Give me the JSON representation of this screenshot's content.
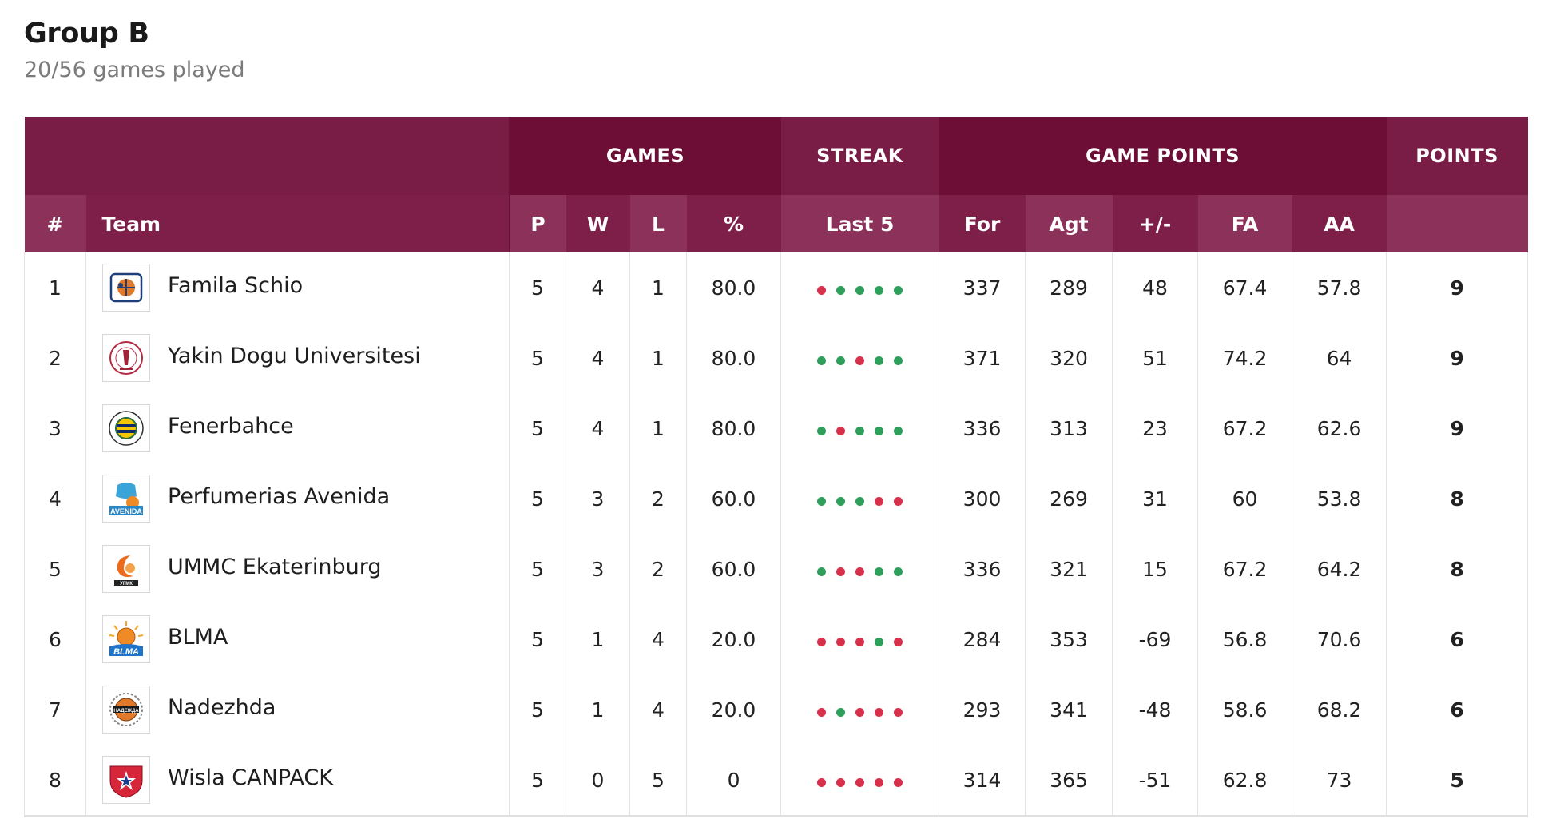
{
  "header": {
    "title": "Group B",
    "subtitle": "20/56 games played"
  },
  "colors": {
    "header_bg": "#7a1d46",
    "header_dark": "#6d0e37",
    "win": "#2e9e5b",
    "loss": "#d6304a"
  },
  "table": {
    "group_headers": {
      "games": "GAMES",
      "streak": "STREAK",
      "game_points": "GAME POINTS",
      "points": "POINTS"
    },
    "columns": {
      "rank": "#",
      "team": "Team",
      "p": "P",
      "w": "W",
      "l": "L",
      "pct": "%",
      "last5": "Last 5",
      "for": "For",
      "agt": "Agt",
      "diff": "+/-",
      "fa": "FA",
      "aa": "AA"
    },
    "rows": [
      {
        "rank": "1",
        "team": "Famila Schio",
        "logo": "famila-schio-logo",
        "p": "5",
        "w": "4",
        "l": "1",
        "pct": "80.0",
        "last5": [
          "L",
          "W",
          "W",
          "W",
          "W"
        ],
        "for": "337",
        "agt": "289",
        "diff": "48",
        "fa": "67.4",
        "aa": "57.8",
        "points": "9"
      },
      {
        "rank": "2",
        "team": "Yakin Dogu Universitesi",
        "logo": "yakin-dogu-logo",
        "p": "5",
        "w": "4",
        "l": "1",
        "pct": "80.0",
        "last5": [
          "W",
          "W",
          "L",
          "W",
          "W"
        ],
        "for": "371",
        "agt": "320",
        "diff": "51",
        "fa": "74.2",
        "aa": "64",
        "points": "9"
      },
      {
        "rank": "3",
        "team": "Fenerbahce",
        "logo": "fenerbahce-logo",
        "p": "5",
        "w": "4",
        "l": "1",
        "pct": "80.0",
        "last5": [
          "W",
          "L",
          "W",
          "W",
          "W"
        ],
        "for": "336",
        "agt": "313",
        "diff": "23",
        "fa": "67.2",
        "aa": "62.6",
        "points": "9"
      },
      {
        "rank": "4",
        "team": "Perfumerias Avenida",
        "logo": "avenida-logo",
        "p": "5",
        "w": "3",
        "l": "2",
        "pct": "60.0",
        "last5": [
          "W",
          "W",
          "W",
          "L",
          "L"
        ],
        "for": "300",
        "agt": "269",
        "diff": "31",
        "fa": "60",
        "aa": "53.8",
        "points": "8"
      },
      {
        "rank": "5",
        "team": "UMMC Ekaterinburg",
        "logo": "ummc-logo",
        "p": "5",
        "w": "3",
        "l": "2",
        "pct": "60.0",
        "last5": [
          "W",
          "L",
          "L",
          "W",
          "W"
        ],
        "for": "336",
        "agt": "321",
        "diff": "15",
        "fa": "67.2",
        "aa": "64.2",
        "points": "8"
      },
      {
        "rank": "6",
        "team": "BLMA",
        "logo": "blma-logo",
        "p": "5",
        "w": "1",
        "l": "4",
        "pct": "20.0",
        "last5": [
          "L",
          "L",
          "L",
          "W",
          "L"
        ],
        "for": "284",
        "agt": "353",
        "diff": "-69",
        "fa": "56.8",
        "aa": "70.6",
        "points": "6"
      },
      {
        "rank": "7",
        "team": "Nadezhda",
        "logo": "nadezhda-logo",
        "p": "5",
        "w": "1",
        "l": "4",
        "pct": "20.0",
        "last5": [
          "L",
          "W",
          "L",
          "L",
          "L"
        ],
        "for": "293",
        "agt": "341",
        "diff": "-48",
        "fa": "58.6",
        "aa": "68.2",
        "points": "6"
      },
      {
        "rank": "8",
        "team": "Wisla CANPACK",
        "logo": "wisla-logo",
        "p": "5",
        "w": "0",
        "l": "5",
        "pct": "0",
        "last5": [
          "L",
          "L",
          "L",
          "L",
          "L"
        ],
        "for": "314",
        "agt": "365",
        "diff": "-51",
        "fa": "62.8",
        "aa": "73",
        "points": "5"
      }
    ]
  }
}
